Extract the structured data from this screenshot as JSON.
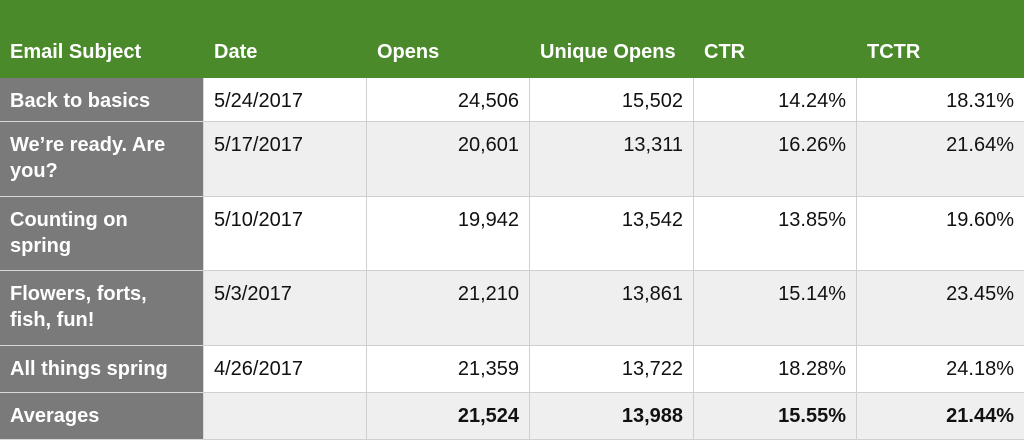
{
  "table": {
    "headers": [
      "Email Subject",
      "Date",
      "Opens",
      "Unique Opens",
      "CTR",
      "TCTR"
    ],
    "rows": [
      [
        "Back to basics",
        "5/24/2017",
        "24,506",
        "15,502",
        "14.24%",
        "18.31%"
      ],
      [
        "We’re ready. Are you?",
        "5/17/2017",
        "20,601",
        "13,311",
        "16.26%",
        "21.64%"
      ],
      [
        "Counting on spring",
        "5/10/2017",
        "19,942",
        "13,542",
        "13.85%",
        "19.60%"
      ],
      [
        "Flowers, forts, fish, fun!",
        "5/3/2017",
        "21,210",
        "13,861",
        "15.14%",
        "23.45%"
      ],
      [
        "All things spring",
        "4/26/2017",
        "21,359",
        "13,722",
        "18.28%",
        "24.18%"
      ]
    ],
    "averages": [
      "Averages",
      "",
      "21,524",
      "13,988",
      "15.55%",
      "21.44%"
    ]
  },
  "colors": {
    "header_bg": "#4a8a2a",
    "label_column_bg": "#7a7a7a",
    "shaded_row_bg": "#efefef"
  }
}
